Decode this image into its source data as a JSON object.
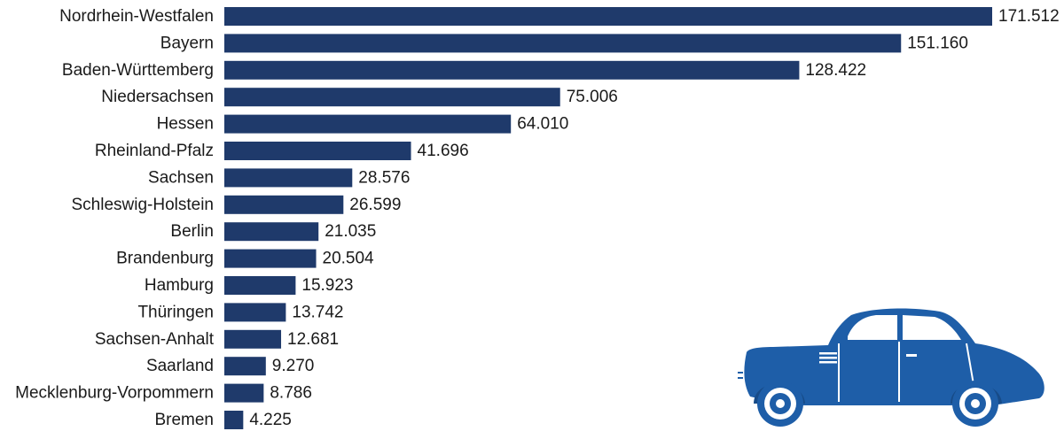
{
  "chart_data": {
    "type": "bar",
    "orientation": "horizontal",
    "categories": [
      "Nordrhein-Westfalen",
      "Bayern",
      "Baden-Württemberg",
      "Niedersachsen",
      "Hessen",
      "Rheinland-Pfalz",
      "Sachsen",
      "Schleswig-Holstein",
      "Berlin",
      "Brandenburg",
      "Hamburg",
      "Thüringen",
      "Sachsen-Anhalt",
      "Saarland",
      "Mecklenburg-Vorpommern",
      "Bremen"
    ],
    "values": [
      171512,
      151160,
      128422,
      75006,
      64010,
      41696,
      28576,
      26599,
      21035,
      20504,
      15923,
      13742,
      12681,
      9270,
      8786,
      4225
    ],
    "value_labels": [
      "171.512",
      "151.160",
      "128.422",
      "75.006",
      "64.010",
      "41.696",
      "28.576",
      "26.599",
      "21.035",
      "20.504",
      "15.923",
      "13.742",
      "12.681",
      "9.270",
      "8.786",
      "4.225"
    ],
    "title": "",
    "xlabel": "",
    "ylabel": "",
    "xlim": [
      0,
      171512
    ],
    "grid": false,
    "legend": "none",
    "bar_color": "#1f3a6b"
  },
  "illustration": {
    "icon": "car-icon",
    "body_color": "#1e5ea8",
    "detail_color": "#ffffff"
  }
}
